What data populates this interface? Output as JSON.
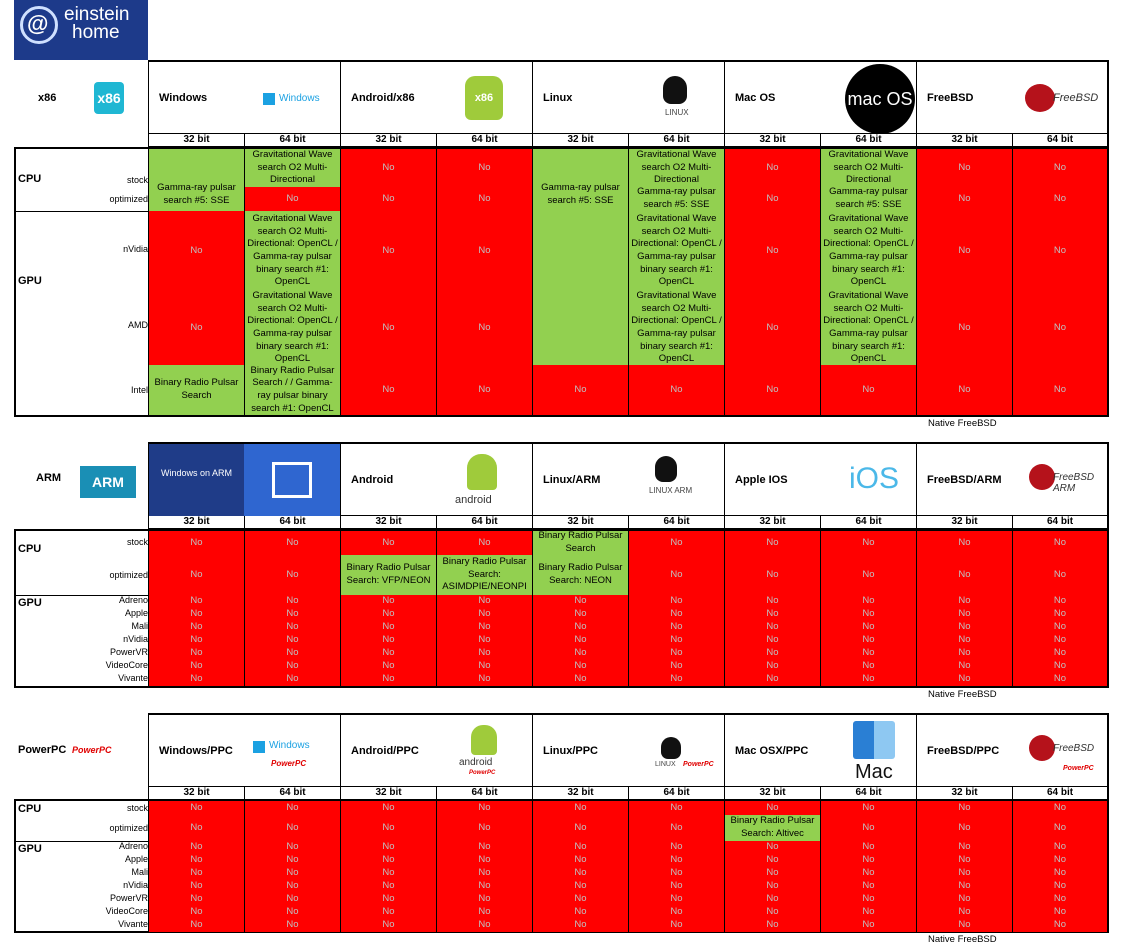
{
  "brand": {
    "line1": "einstein",
    "line2": "home"
  },
  "bits": [
    "32 bit",
    "64 bit"
  ],
  "no": "No",
  "note": "Native FreeBSD",
  "sections": {
    "x86": {
      "arch": "x86",
      "arch_logo": "x86",
      "platforms": [
        {
          "name": "Windows",
          "logo": "Windows"
        },
        {
          "name": "Android/x86",
          "logo": "x86"
        },
        {
          "name": "Linux",
          "logo": "LINUX"
        },
        {
          "name": "Mac OS",
          "logo": "mac OS"
        },
        {
          "name": "FreeBSD",
          "logo": "FreeBSD"
        }
      ],
      "cpu_label": "CPU",
      "gpu_label": "GPU",
      "cpu_rows": [
        "stock",
        "optimized"
      ],
      "gpu_rows": [
        "nVidia",
        "AMD",
        "Intel"
      ],
      "texts": {
        "gw_cpu": "Gravitational Wave search O2 Multi-Directional",
        "gamma_sse": "Gamma-ray pulsar search #5: SSE",
        "gw_gpu_nvidia": "Gravitational Wave search O2 Multi-Directional: OpenCL / Gamma-ray pulsar binary search #1: OpenCL",
        "gw_gpu_amd": "Gravitational Wave search O2 Multi-Directional: OpenCL / Gamma-ray pulsar binary search #1: OpenCL",
        "brp_search": "Binary Radio Pulsar Search",
        "brp_gamma": "Binary Radio Pulsar Search / / Gamma-ray pulsar binary search #1: OpenCL"
      }
    },
    "arm": {
      "arch": "ARM",
      "arch_logo": "ARM",
      "platforms": [
        {
          "name": "",
          "logo": "Windows on ARM"
        },
        {
          "name": "Android",
          "logo": "android"
        },
        {
          "name": "Linux/ARM",
          "logo": "LINUX ARM"
        },
        {
          "name": "Apple IOS",
          "logo": "iOS"
        },
        {
          "name": "FreeBSD/ARM",
          "logo": "FreeBSD ARM"
        }
      ],
      "cpu_label": "CPU",
      "gpu_label": "GPU",
      "cpu_rows": [
        "stock",
        "optimized"
      ],
      "gpu_rows": [
        "Adreno",
        "Apple",
        "Mali",
        "nVidia",
        "PowerVR",
        "VideoCore",
        "Vivante"
      ],
      "texts": {
        "brp_vfp": "Binary Radio Pulsar Search: VFP/NEON",
        "brp_asimd": "Binary Radio Pulsar Search: ASIMDPIE/NEONPI",
        "brp_search": "Binary Radio Pulsar Search",
        "brp_neon": "Binary Radio Pulsar Search: NEON"
      }
    },
    "ppc": {
      "arch": "PowerPC",
      "arch_logo": "PowerPC",
      "platforms": [
        {
          "name": "Windows/PPC",
          "logo": "Windows"
        },
        {
          "name": "Android/PPC",
          "logo": "android"
        },
        {
          "name": "Linux/PPC",
          "logo": "LINUX"
        },
        {
          "name": "Mac OSX/PPC",
          "logo": "Mac"
        },
        {
          "name": "FreeBSD/PPC",
          "logo": "FreeBSD"
        }
      ],
      "cpu_label": "CPU",
      "gpu_label": "GPU",
      "cpu_rows": [
        "stock",
        "optimized"
      ],
      "gpu_rows": [
        "Adreno",
        "Apple",
        "Mali",
        "nVidia",
        "PowerVR",
        "VideoCore",
        "Vivante"
      ],
      "texts": {
        "brp_altivec": "Binary Radio Pulsar Search: Altivec"
      }
    }
  },
  "colors": {
    "red": "#ff0000",
    "green": "#92d050",
    "brand": "#1d3a8a"
  }
}
